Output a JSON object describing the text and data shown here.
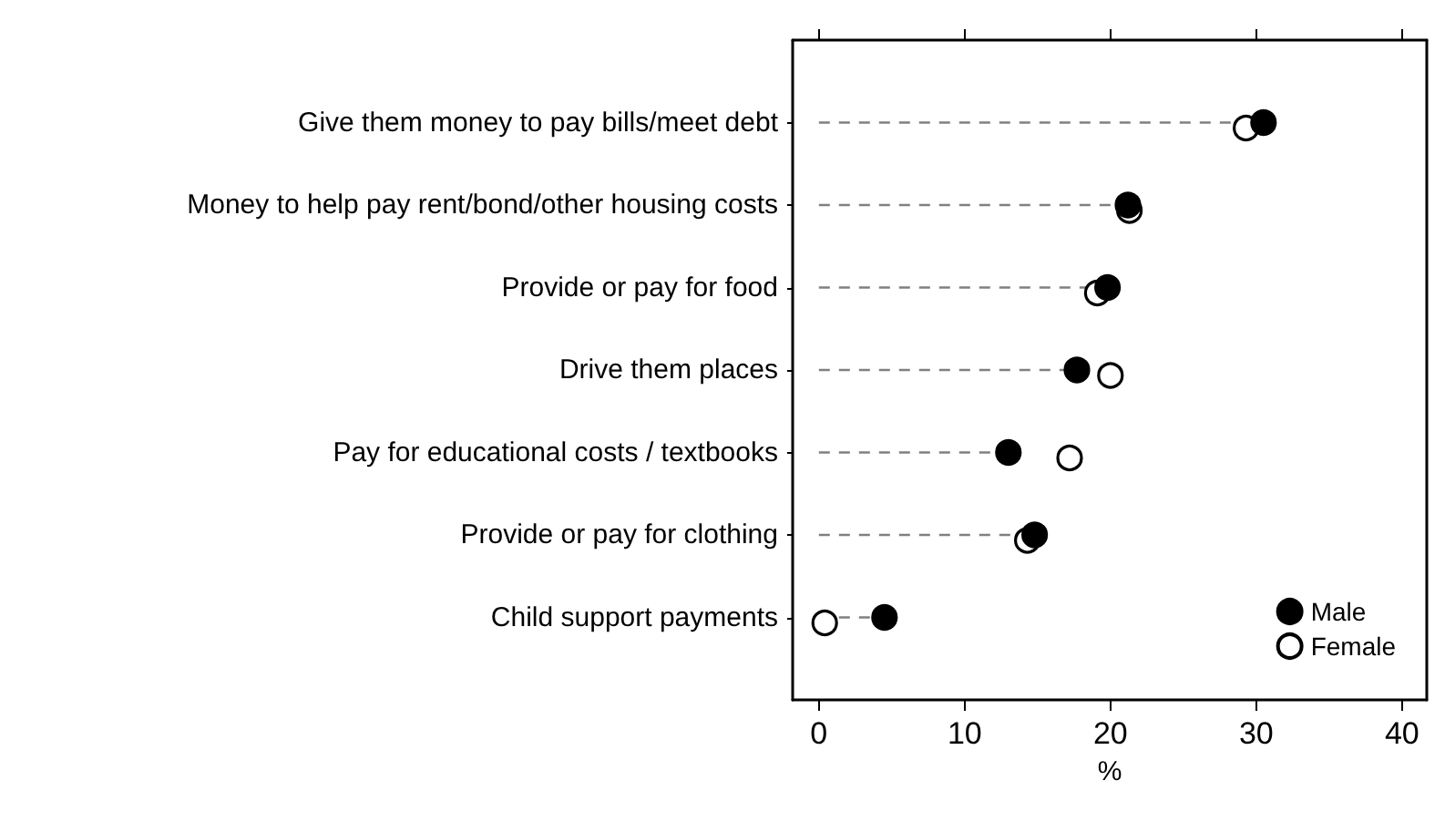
{
  "chart_data": {
    "type": "lollipop",
    "orientation": "horizontal",
    "xlabel": "%",
    "categories": [
      "Give them money to pay bills/meet debt",
      "Money to help pay rent/bond/other housing costs",
      "Provide or pay for food",
      "Drive them places",
      "Pay for educational costs / textbooks",
      "Provide or pay for clothing",
      "Child support payments"
    ],
    "series": [
      {
        "name": "Male",
        "color": "#000000",
        "values": [
          30.5,
          21.2,
          19.8,
          17.7,
          13.0,
          14.8,
          4.5
        ]
      },
      {
        "name": "Female",
        "color": "#ffffff",
        "values": [
          29.3,
          21.3,
          19.1,
          20.0,
          17.2,
          14.3,
          0.4
        ]
      }
    ],
    "xlim": [
      -1.8,
      41.7
    ],
    "xticks": [
      0,
      10,
      20,
      30,
      40
    ],
    "marker": "circle",
    "line_style": "dashed",
    "grid": false,
    "legend": "bottom right"
  }
}
